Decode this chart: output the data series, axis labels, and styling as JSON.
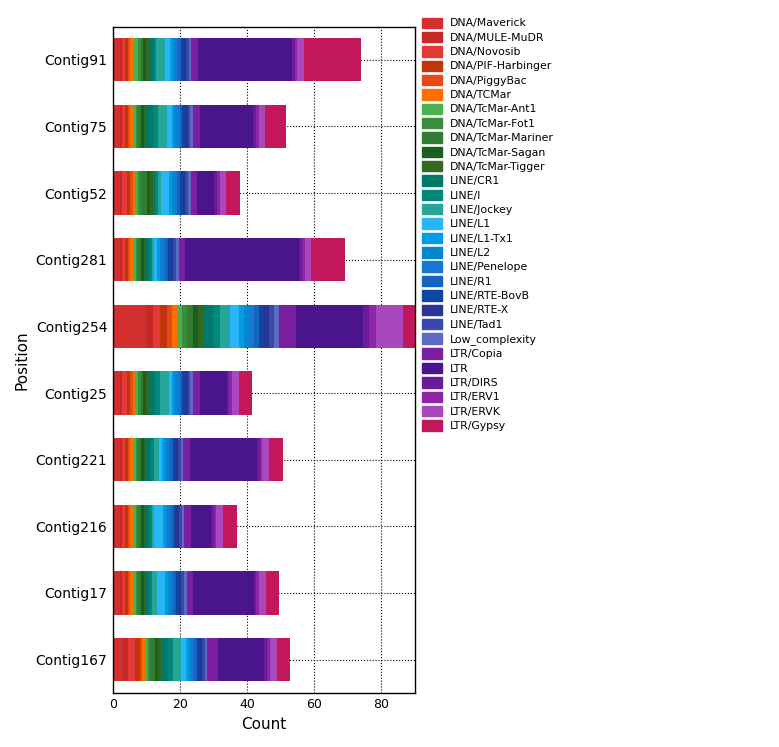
{
  "categories": [
    "Contig91",
    "Contig75",
    "Contig52",
    "Contig281",
    "Contig254",
    "Contig25",
    "Contig221",
    "Contig216",
    "Contig17",
    "Contig167"
  ],
  "legend_labels": [
    "DNA/Maverick",
    "DNA/MULE-MuDR",
    "DNA/Novosib",
    "DNA/PIF-Harbinger",
    "DNA/PiggyBac",
    "DNA/TCMar",
    "DNA/TcMar-Ant1",
    "DNA/TcMar-Fot1",
    "DNA/TcMar-Mariner",
    "DNA/TcMar-Sagan",
    "DNA/TcMar-Tigger",
    "LINE/CR1",
    "LINE/I",
    "LINE/Jockey",
    "LINE/L1",
    "LINE/L1-Tx1",
    "LINE/L2",
    "LINE/Penelope",
    "LINE/R1",
    "LINE/RTE-BovB",
    "LINE/RTE-X",
    "LINE/Tad1",
    "Low_complexity",
    "LTR/Copia",
    "LTR",
    "LTR/DIRS",
    "LTR/ERV1",
    "LTR/ERVK",
    "LTR/Gypsy"
  ],
  "bar_colors": [
    "#D32F2F",
    "#C0392B",
    "#E64A19",
    "#BF360C",
    "#FF5722",
    "#FF7043",
    "#4CAF50",
    "#388E3C",
    "#1B5E20",
    "#2E7D32",
    "#43A047",
    "#00796B",
    "#00897B",
    "#26A69A",
    "#00ACC1",
    "#0288D1",
    "#039BE5",
    "#1976D2",
    "#1565C0",
    "#0D47A1",
    "#283593",
    "#3949AB",
    "#5C6BC0",
    "#7B1FA2",
    "#4A148C",
    "#6A1B9A",
    "#7B1FA2",
    "#AB47BC",
    "#C2185B"
  ],
  "data": {
    "Contig91": [
      2.0,
      0.8,
      0.8,
      0.8,
      0.8,
      0.8,
      1.5,
      0.8,
      0.8,
      0.8,
      0.8,
      1.5,
      0.8,
      2.5,
      1.5,
      0.8,
      0.8,
      0.8,
      0.8,
      0.8,
      0.8,
      0.8,
      0.8,
      2.0,
      28.0,
      0.8,
      0.8,
      2.0,
      17.0
    ],
    "Contig75": [
      2.0,
      0.8,
      0.8,
      0.8,
      0.8,
      0.8,
      0.8,
      0.8,
      0.8,
      0.8,
      0.8,
      2.0,
      1.5,
      2.5,
      1.5,
      0.8,
      0.8,
      0.8,
      0.8,
      0.8,
      0.8,
      0.8,
      0.8,
      2.0,
      16.0,
      0.8,
      0.8,
      2.0,
      6.0
    ],
    "Contig52": [
      2.0,
      0.8,
      1.5,
      0.8,
      0.8,
      0.8,
      0.8,
      0.8,
      2.0,
      0.8,
      0.8,
      0.8,
      0.8,
      0.8,
      2.5,
      0.8,
      0.8,
      0.8,
      0.8,
      0.8,
      0.8,
      0.8,
      0.8,
      2.0,
      5.0,
      0.8,
      0.8,
      2.0,
      4.0
    ],
    "Contig281": [
      2.0,
      0.8,
      0.8,
      0.8,
      0.8,
      0.8,
      0.8,
      0.8,
      0.8,
      0.8,
      0.8,
      0.8,
      0.8,
      0.8,
      0.8,
      0.8,
      0.8,
      0.8,
      0.8,
      0.8,
      0.8,
      0.8,
      0.8,
      2.0,
      34.0,
      0.8,
      0.8,
      2.0,
      10.0
    ],
    "Contig254": [
      10.0,
      2.0,
      2.0,
      2.0,
      1.5,
      1.5,
      1.5,
      1.5,
      2.0,
      1.5,
      1.5,
      3.0,
      2.0,
      3.0,
      2.5,
      1.5,
      1.5,
      1.5,
      1.5,
      1.5,
      1.5,
      1.5,
      1.5,
      5.0,
      20.0,
      2.0,
      2.0,
      8.0,
      5.0
    ],
    "Contig25": [
      2.0,
      0.8,
      1.5,
      0.8,
      0.8,
      0.8,
      0.8,
      0.8,
      0.8,
      0.8,
      0.8,
      2.0,
      1.5,
      2.5,
      0.8,
      0.8,
      0.8,
      0.8,
      0.8,
      0.8,
      0.8,
      0.8,
      0.8,
      2.0,
      8.0,
      0.8,
      0.8,
      2.0,
      4.0
    ],
    "Contig221": [
      2.0,
      0.8,
      0.8,
      0.8,
      0.8,
      0.8,
      0.8,
      0.8,
      0.8,
      0.8,
      0.8,
      1.5,
      0.8,
      1.5,
      0.8,
      0.8,
      0.8,
      0.8,
      0.8,
      0.8,
      0.8,
      0.8,
      0.8,
      2.0,
      20.0,
      0.8,
      0.8,
      2.0,
      4.0
    ],
    "Contig216": [
      2.0,
      0.8,
      0.8,
      0.8,
      0.8,
      0.8,
      0.8,
      0.8,
      0.8,
      0.8,
      0.8,
      0.8,
      0.8,
      0.8,
      2.5,
      0.8,
      0.8,
      0.8,
      0.8,
      0.8,
      0.8,
      0.8,
      0.8,
      2.0,
      6.0,
      0.8,
      0.8,
      2.0,
      4.0
    ],
    "Contig17": [
      2.0,
      0.8,
      0.8,
      0.8,
      0.8,
      0.8,
      0.8,
      0.8,
      0.8,
      0.8,
      0.8,
      0.8,
      0.8,
      1.5,
      2.5,
      0.8,
      0.8,
      0.8,
      0.8,
      0.8,
      0.8,
      0.8,
      0.8,
      2.0,
      18.0,
      0.8,
      0.8,
      2.0,
      4.0
    ],
    "Contig167": [
      3.0,
      1.5,
      2.0,
      1.5,
      0.8,
      0.8,
      0.8,
      0.8,
      1.5,
      0.8,
      0.8,
      2.0,
      1.5,
      2.5,
      1.5,
      0.8,
      0.8,
      0.8,
      0.8,
      0.8,
      0.8,
      0.8,
      0.8,
      3.0,
      14.0,
      0.8,
      0.8,
      2.0,
      4.0
    ]
  },
  "xlabel": "Count",
  "ylabel": "Position",
  "xlim": [
    0,
    90
  ],
  "xticks": [
    0,
    20,
    40,
    60,
    80
  ],
  "figsize": [
    7.79,
    7.47
  ],
  "dpi": 100
}
